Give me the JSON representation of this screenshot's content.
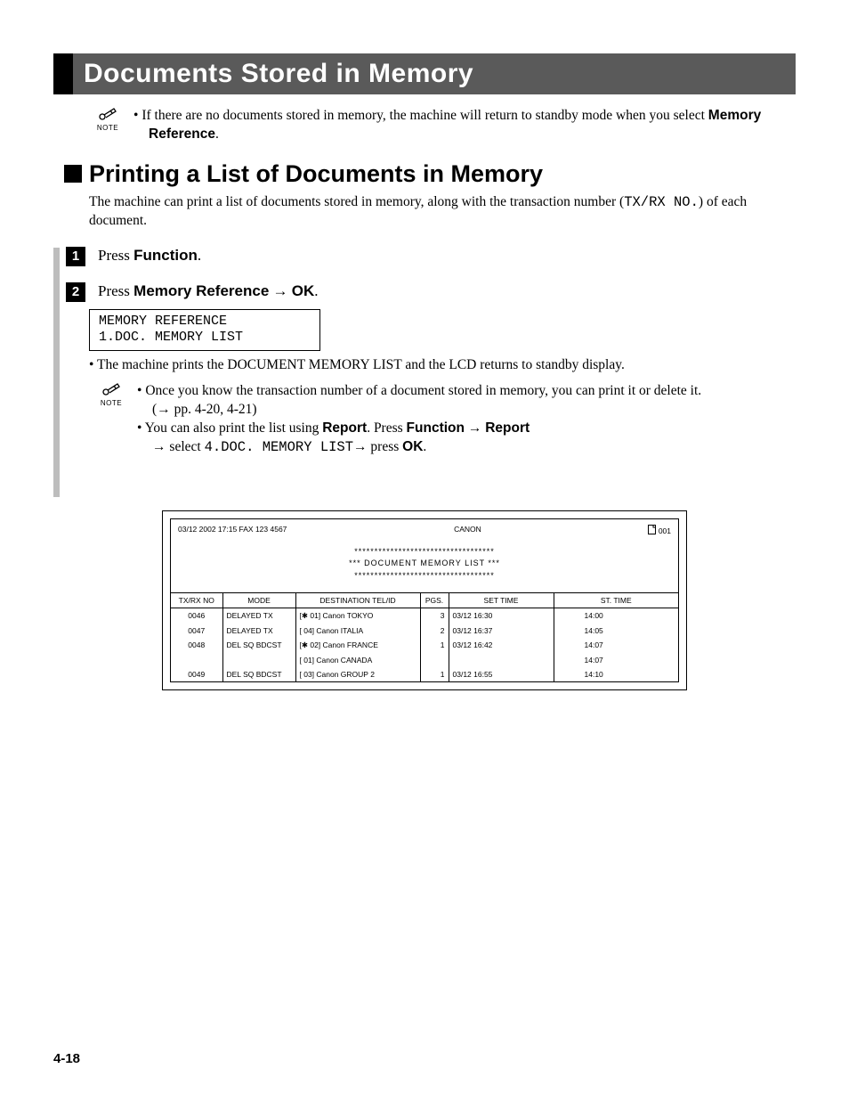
{
  "heading": {
    "main": "Documents Stored in Memory",
    "section": "Printing a List of Documents in Memory"
  },
  "note_label": "NOTE",
  "note1": {
    "line1_prefix": "If there are no documents stored in memory, the machine will return to standby mode when you select ",
    "line1_bold": "Memory Reference",
    "line1_suffix": "."
  },
  "intro": {
    "pre": "The machine can print a list of documents stored in memory, along with the transaction number (",
    "mono": "TX/RX NO.",
    "post": ") of each document."
  },
  "steps": {
    "s1_num": "1",
    "s1_pre": "Press ",
    "s1_bold": "Function",
    "s1_suf": ".",
    "s2_num": "2",
    "s2_pre": "Press ",
    "s2_bold1": "Memory Reference",
    "s2_arrow": " → ",
    "s2_bold2": "OK",
    "s2_suf": "."
  },
  "lcd": {
    "l1": "MEMORY REFERENCE",
    "l2": " 1.DOC. MEMORY LIST"
  },
  "sub1": "The machine prints the DOCUMENT MEMORY LIST and the LCD returns to standby display.",
  "note2": {
    "b1a": "Once you know the transaction number of a document stored in memory, you can print it or delete it.",
    "b1b": "(→ pp. 4-20, 4-21)",
    "b2_pre": "You can also print the list using ",
    "b2_report": "Report",
    "b2_mid": ". Press ",
    "b2_func": "Function",
    "b2_arr1": " → ",
    "b2_report2": "Report",
    "b2_line2_pre": "→ select ",
    "b2_mono": "4.DOC. MEMORY LIST",
    "b2_line2_mid": "→ press ",
    "b2_ok": "OK",
    "b2_line2_suf": "."
  },
  "report": {
    "hdr_left": "03/12 2002  17:15  FAX 123 4567",
    "hdr_center": "CANON",
    "hdr_right": "001",
    "star_line": "***********************************",
    "title": "***   DOCUMENT MEMORY LIST   ***",
    "cols": [
      "TX/RX NO",
      "MODE",
      "DESTINATION TEL/ID",
      "PGS.",
      "SET TIME",
      "ST. TIME"
    ],
    "rows": [
      [
        "0046",
        "DELAYED TX",
        "[✱ 01] Canon TOKYO",
        "3",
        "03/12   16:30",
        "14:00"
      ],
      [
        "0047",
        "DELAYED TX",
        "[   04] Canon ITALIA",
        "2",
        "03/12   16:37",
        "14:05"
      ],
      [
        "0048",
        "DEL SQ BDCST",
        "[✱ 02] Canon FRANCE",
        "1",
        "03/12   16:42",
        "14:07"
      ],
      [
        "",
        "",
        "[   01] Canon CANADA",
        "",
        "",
        "14:07"
      ],
      [
        "0049",
        "DEL SQ BDCST",
        "[   03] Canon GROUP 2",
        "1",
        "03/12   16:55",
        "14:10"
      ]
    ]
  },
  "page_number": "4-18"
}
